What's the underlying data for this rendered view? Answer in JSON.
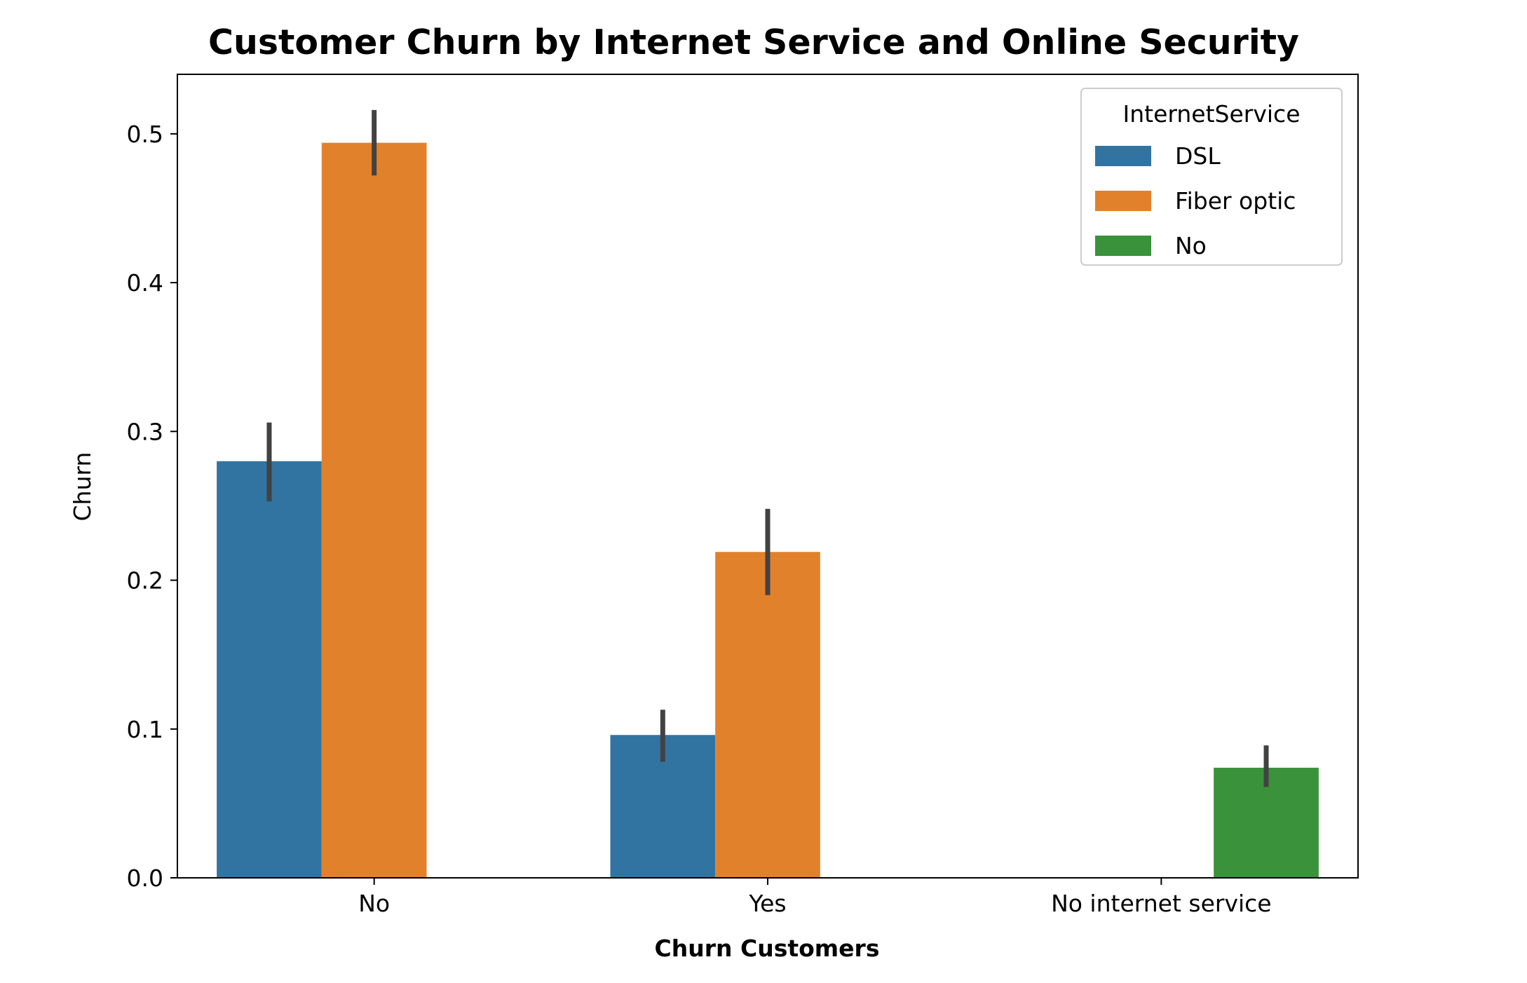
{
  "chart_data": {
    "type": "bar",
    "title": "Customer Churn by Internet Service and Online Security",
    "xlabel": "Churn Customers",
    "ylabel": "Churn",
    "categories": [
      "No",
      "Yes",
      "No internet service"
    ],
    "ylim": [
      0,
      0.54
    ],
    "yticks": [
      "0.0",
      "0.1",
      "0.2",
      "0.3",
      "0.4",
      "0.5"
    ],
    "grid": false,
    "legend": {
      "title": "InternetService",
      "placement": "top-right"
    },
    "series": [
      {
        "name": "DSL",
        "color": "#3274a1",
        "values": [
          0.28,
          0.096,
          null
        ],
        "err_low": [
          0.253,
          0.078,
          null
        ],
        "err_high": [
          0.306,
          0.113,
          null
        ]
      },
      {
        "name": "Fiber optic",
        "color": "#e1812c",
        "values": [
          0.494,
          0.219,
          null
        ],
        "err_low": [
          0.472,
          0.19,
          null
        ],
        "err_high": [
          0.516,
          0.248,
          null
        ]
      },
      {
        "name": "No",
        "color": "#3a923a",
        "values": [
          null,
          null,
          0.074
        ],
        "err_low": [
          null,
          null,
          0.061
        ],
        "err_high": [
          null,
          null,
          0.089
        ]
      }
    ],
    "error_bar_color": "#424242"
  }
}
